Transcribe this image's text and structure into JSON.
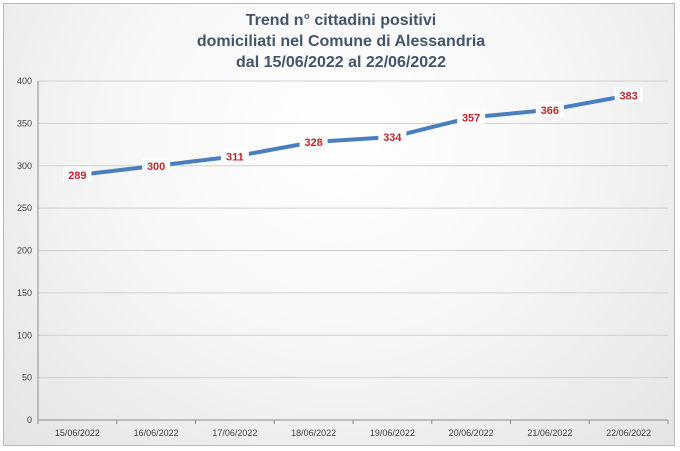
{
  "colors": {
    "series_line": "#4a7fbf",
    "data_label": "#c0262d",
    "title": "#44546a",
    "gridline": "#cfcfcf",
    "axis": "#8c8c8c"
  },
  "chart_data": {
    "type": "line",
    "title_lines": [
      "Trend n° cittadini positivi",
      "domiciliati nel Comune di Alessandria",
      "dal 15/06/2022 al 22/06/2022"
    ],
    "categories": [
      "15/06/2022",
      "16/06/2022",
      "17/06/2022",
      "18/06/2022",
      "19/06/2022",
      "20/06/2022",
      "21/06/2022",
      "22/06/2022"
    ],
    "series": [
      {
        "values": [
          289,
          300,
          311,
          328,
          334,
          357,
          366,
          383
        ]
      }
    ],
    "ylim": [
      0,
      400
    ],
    "yticks": [
      0,
      50,
      100,
      150,
      200,
      250,
      300,
      350,
      400
    ],
    "grid": true,
    "legend": "none",
    "data_labels": true
  }
}
